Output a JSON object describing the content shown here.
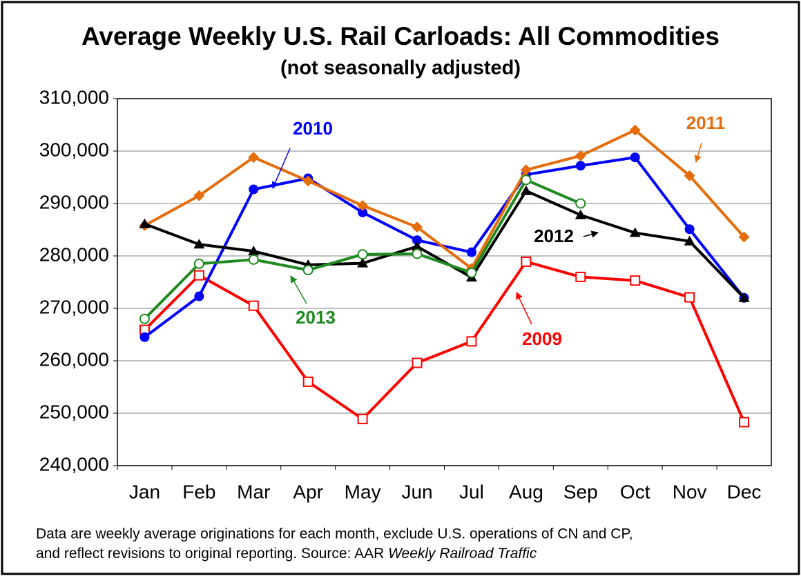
{
  "chart_data": {
    "type": "line",
    "title": "Average Weekly U.S. Rail Carloads: All Commodities",
    "subtitle": "(not seasonally adjusted)",
    "categories": [
      "Jan",
      "Feb",
      "Mar",
      "Apr",
      "May",
      "Jun",
      "Jul",
      "Aug",
      "Sep",
      "Oct",
      "Nov",
      "Dec"
    ],
    "ylim": [
      240000,
      310000
    ],
    "yticks": [
      {
        "value": 240000,
        "label": "240,000"
      },
      {
        "value": 250000,
        "label": "250,000"
      },
      {
        "value": 260000,
        "label": "260,000"
      },
      {
        "value": 270000,
        "label": "270,000"
      },
      {
        "value": 280000,
        "label": "280,000"
      },
      {
        "value": 290000,
        "label": "290,000"
      },
      {
        "value": 300000,
        "label": "300,000"
      },
      {
        "value": 310000,
        "label": "310,000"
      }
    ],
    "grid": true,
    "series": [
      {
        "name": "2009",
        "color": "#ff0000",
        "marker": "square-open",
        "values": [
          265900,
          276300,
          270500,
          256000,
          248900,
          259600,
          263700,
          278900,
          276000,
          275300,
          272100,
          248300
        ]
      },
      {
        "name": "2010",
        "color": "#0000ff",
        "marker": "circle",
        "values": [
          264500,
          272300,
          292700,
          294800,
          288300,
          283000,
          280700,
          295500,
          297200,
          298800,
          285100,
          272000
        ]
      },
      {
        "name": "2011",
        "color": "#e46c0a",
        "marker": "diamond",
        "values": [
          285800,
          291500,
          298800,
          294300,
          289600,
          285500,
          277600,
          296400,
          299100,
          304000,
          295300,
          283600
        ]
      },
      {
        "name": "2012",
        "color": "#000000",
        "marker": "triangle",
        "values": [
          286100,
          282200,
          280900,
          278300,
          278600,
          281800,
          275900,
          292400,
          287800,
          284400,
          282800,
          272000
        ]
      },
      {
        "name": "2013",
        "color": "#1f8a1f",
        "marker": "circle-open",
        "values": [
          268000,
          278500,
          279300,
          277300,
          280300,
          280400,
          276800,
          294500,
          290000,
          null,
          null,
          null
        ]
      }
    ],
    "note": {
      "line1": "Data are weekly average originations for each month, exclude U.S. operations of CN and CP,",
      "line2": "and reflect revisions to original reporting.  Source: AAR ",
      "line2_italic": "Weekly Railroad Traffic"
    }
  }
}
